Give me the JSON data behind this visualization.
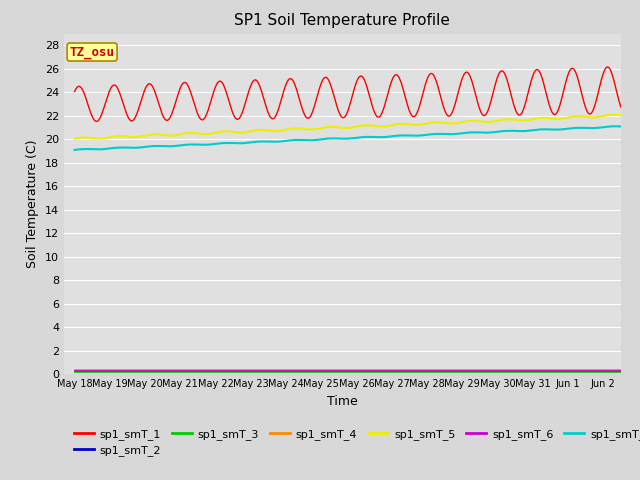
{
  "title": "SP1 Soil Temperature Profile",
  "xlabel": "Time",
  "ylabel": "Soil Temperature (C)",
  "annotation": "TZ_osu",
  "annotation_color": "#cc0000",
  "annotation_bg": "#ffff99",
  "annotation_border": "#aa8800",
  "ylim": [
    0,
    29
  ],
  "yticks": [
    0,
    2,
    4,
    6,
    8,
    10,
    12,
    14,
    16,
    18,
    20,
    22,
    24,
    26,
    28
  ],
  "bg_color": "#d8d8d8",
  "plot_bg": "#e0e0e0",
  "grid_color": "#ffffff",
  "line_colors": {
    "sp1_smT_1": "#ff0000",
    "sp1_smT_2": "#0000cc",
    "sp1_smT_3": "#00cc00",
    "sp1_smT_4": "#ff8800",
    "sp1_smT_5": "#eeee00",
    "sp1_smT_6": "#cc00cc",
    "sp1_smT_7": "#00cccc"
  },
  "tick_labels": [
    "May 18",
    "May 19",
    "May 20",
    "May 21",
    "May 22",
    "May 23",
    "May 24",
    "May 25",
    "May 26",
    "May 27",
    "May 28",
    "May 29",
    "May 30",
    "May 31",
    "Jun 1",
    "Jun 2"
  ],
  "n_days": 15.5,
  "n_points": 744
}
